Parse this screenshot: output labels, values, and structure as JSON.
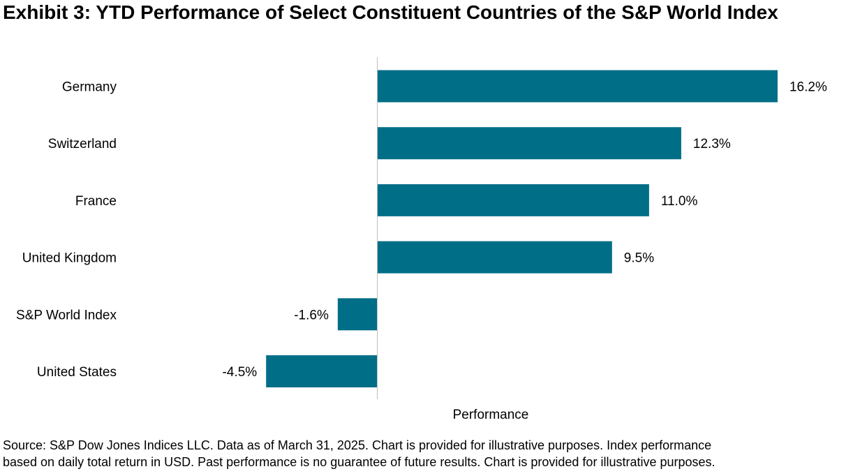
{
  "title": "Exhibit 3: YTD Performance of Select Constituent Countries of the S&P World Index",
  "chart_data": {
    "type": "bar",
    "orientation": "horizontal",
    "title": "Exhibit 3: YTD Performance of Select Constituent Countries of the S&P World Index",
    "categories": [
      "Germany",
      "Switzerland",
      "France",
      "United Kingdom",
      "S&P World Index",
      "United States"
    ],
    "values": [
      16.2,
      12.3,
      11.0,
      9.5,
      -1.6,
      -4.5
    ],
    "data_labels": [
      "16.2%",
      "12.3%",
      "11.0%",
      "9.5%",
      "-1.6%",
      "-4.5%"
    ],
    "xlabel": "Performance",
    "ylabel": "",
    "unit": "%",
    "xlim": [
      -15,
      20
    ],
    "grid": false,
    "legend": "none",
    "bar_color": "#006e87",
    "axis_color": "#bfbfbf"
  },
  "footnote": {
    "line1": "Source: S&P Dow Jones Indices LLC. Data as of March 31, 2025. Chart is provided for illustrative purposes. Index performance",
    "line2": "based on daily total return in USD. Past performance is no guarantee of future results. Chart is provided for illustrative purposes."
  }
}
